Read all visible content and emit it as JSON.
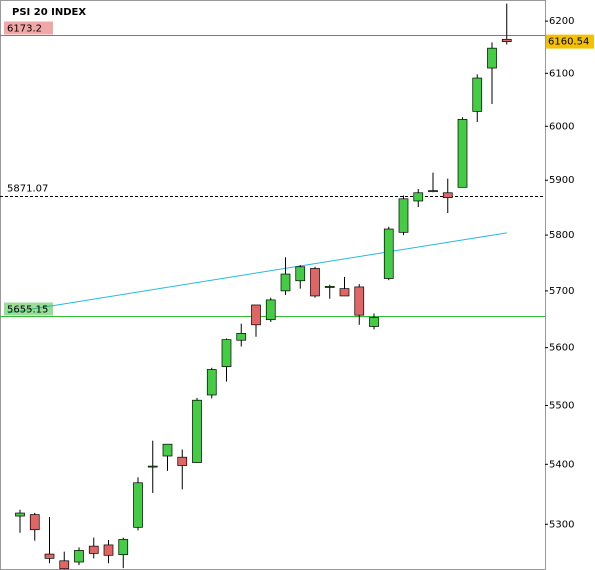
{
  "chart_data": {
    "type": "candlestick",
    "title": "PSI 20 INDEX",
    "log_scale": true,
    "ylim": [
      5225,
      6241
    ],
    "yticks": [
      5300,
      5400,
      5500,
      5600,
      5700,
      5800,
      5900,
      6000,
      6100,
      6200
    ],
    "up_color": "#44cc44",
    "down_color": "#e06666",
    "open": [
      5313.6,
      5316,
      5251,
      5240,
      5238,
      5264,
      5266,
      5250,
      5295,
      5396,
      5414,
      5412,
      5403,
      5518,
      5567,
      5613,
      5675,
      5649,
      5700,
      5718,
      5740,
      5706,
      5704,
      5707,
      5637,
      5722,
      5805,
      5862,
      5879,
      5877,
      5887,
      6028,
      6110,
      6165
    ],
    "high": [
      5324,
      5319,
      5312,
      5255,
      5262,
      5278,
      5274,
      5278,
      5378,
      5440,
      5434,
      5425,
      5513,
      5565,
      5616,
      5642,
      5675,
      5688,
      5760,
      5746,
      5743,
      5711,
      5725,
      5712,
      5660,
      5815,
      5872,
      5884,
      5914,
      5903,
      6017,
      6098,
      6159,
      6234
    ],
    "low": [
      5286,
      5273,
      5236,
      5226,
      5233,
      5244,
      5236,
      5228,
      5290,
      5352,
      5389,
      5358,
      5403,
      5512,
      5541,
      5602,
      5619,
      5645,
      5693,
      5704,
      5688,
      5686,
      5691,
      5640,
      5632,
      5719,
      5800,
      5851,
      5878,
      5840,
      5887,
      6008,
      6042,
      6155
    ],
    "close": [
      5318.6,
      5291,
      5244,
      5227,
      5257,
      5252,
      5249,
      5275,
      5369,
      5397,
      5434,
      5398,
      5509,
      5562,
      5614,
      5625,
      5640,
      5684,
      5730,
      5743,
      5691,
      5708,
      5691,
      5657,
      5653,
      5811,
      5866,
      5877,
      5881,
      5868,
      6013,
      6091,
      6148,
      6160.54
    ],
    "levels": [
      {
        "value": 6173.2,
        "color": "#e05050",
        "style": "solid"
      },
      {
        "value": 5871.07,
        "color": "#000000",
        "style": "dashed"
      },
      {
        "value": 5655.15,
        "color": "#33bb33",
        "style": "solid"
      }
    ],
    "trendline": {
      "values": [
        5661,
        5804
      ],
      "color": "#22bbdd"
    }
  }
}
